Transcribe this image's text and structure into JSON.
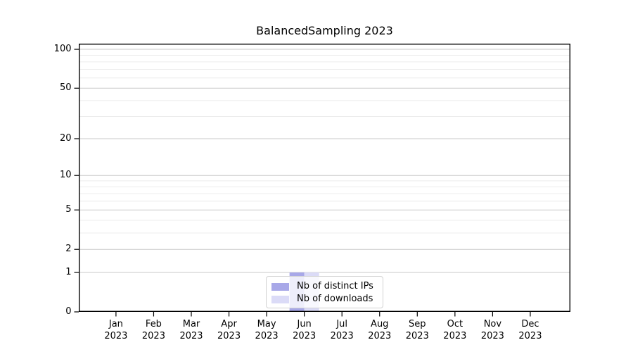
{
  "figure": {
    "title": "BalancedSampling 2023"
  },
  "chart_data": {
    "type": "bar",
    "title": "BalancedSampling 2023",
    "categories": [
      "Jan 2023",
      "Feb 2023",
      "Mar 2023",
      "Apr 2023",
      "May 2023",
      "Jun 2023",
      "Jul 2023",
      "Aug 2023",
      "Sep 2023",
      "Oct 2023",
      "Nov 2023",
      "Dec 2023"
    ],
    "x_tick_labels": [
      {
        "month": "Jan",
        "year": "2023"
      },
      {
        "month": "Feb",
        "year": "2023"
      },
      {
        "month": "Mar",
        "year": "2023"
      },
      {
        "month": "Apr",
        "year": "2023"
      },
      {
        "month": "May",
        "year": "2023"
      },
      {
        "month": "Jun",
        "year": "2023"
      },
      {
        "month": "Jul",
        "year": "2023"
      },
      {
        "month": "Aug",
        "year": "2023"
      },
      {
        "month": "Sep",
        "year": "2023"
      },
      {
        "month": "Oct",
        "year": "2023"
      },
      {
        "month": "Nov",
        "year": "2023"
      },
      {
        "month": "Dec",
        "year": "2023"
      }
    ],
    "series": [
      {
        "name": "Nb of distinct IPs",
        "color": "#a8a8e8",
        "values": [
          0,
          0,
          0,
          0,
          0,
          1,
          0,
          0,
          0,
          0,
          0,
          0
        ]
      },
      {
        "name": "Nb of downloads",
        "color": "#dbdbf7",
        "values": [
          0,
          0,
          0,
          0,
          0,
          1,
          0,
          0,
          0,
          0,
          0,
          0
        ]
      }
    ],
    "xlabel": "",
    "ylabel": "",
    "yscale": "log1p",
    "ylim": [
      0,
      110.6
    ],
    "yticks": [
      0,
      1,
      2,
      5,
      10,
      20,
      50,
      100
    ],
    "yticks_minor": [
      3,
      4,
      6,
      7,
      8,
      9,
      30,
      40,
      60,
      70,
      80,
      90
    ],
    "grid": true,
    "legend_position": "lower center"
  },
  "colors": {
    "grid_major": "#c9c9c9",
    "grid_minor": "#ececec",
    "frame": "#000000"
  }
}
